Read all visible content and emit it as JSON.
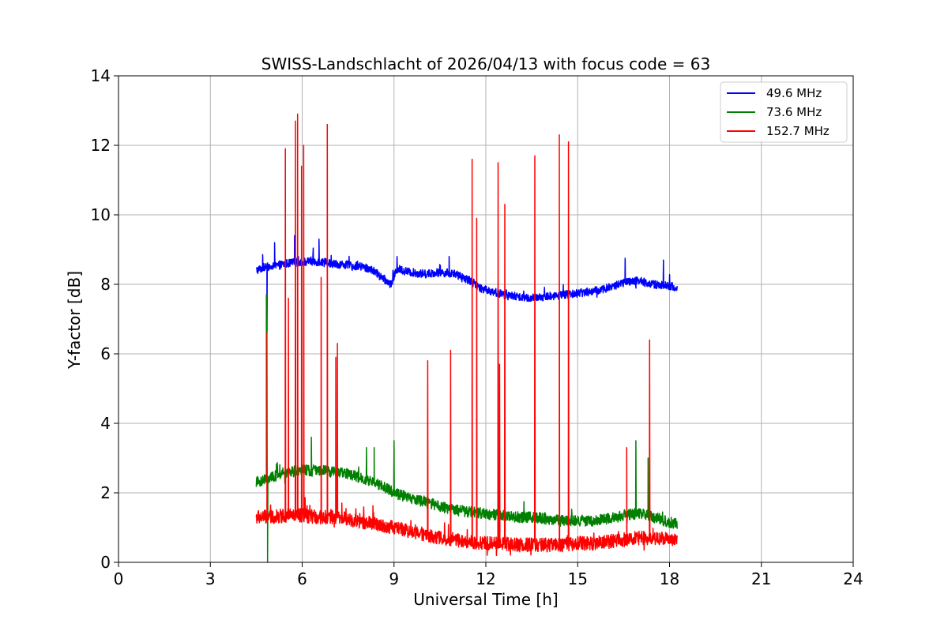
{
  "chart_data": {
    "type": "line",
    "title": "SWISS-Landschlacht of 2026/04/13 with focus code = 63",
    "xlabel": "Universal Time [h]",
    "ylabel": "Y-factor [dB]",
    "xlim": [
      0,
      24
    ],
    "ylim": [
      0,
      14
    ],
    "xticks": [
      0,
      3,
      6,
      9,
      12,
      15,
      18,
      21,
      24
    ],
    "yticks": [
      0,
      2,
      4,
      6,
      8,
      10,
      12,
      14
    ],
    "grid": true,
    "legend_position": "top-right",
    "series": [
      {
        "name": "49.6 MHz",
        "color": "#0000ff",
        "x": [
          4.5,
          4.8,
          5.0,
          5.5,
          6.0,
          6.5,
          7.0,
          7.5,
          8.0,
          8.3,
          8.6,
          8.9,
          9.1,
          9.5,
          10.0,
          10.5,
          11.0,
          11.5,
          11.8,
          12.2,
          12.6,
          13.0,
          13.5,
          14.0,
          14.5,
          15.0,
          15.5,
          16.0,
          16.5,
          17.0,
          17.5,
          18.0,
          18.25
        ],
        "values": [
          8.4,
          8.5,
          8.5,
          8.6,
          8.65,
          8.65,
          8.6,
          8.55,
          8.5,
          8.4,
          8.2,
          8.0,
          8.45,
          8.35,
          8.3,
          8.35,
          8.3,
          8.1,
          7.9,
          7.8,
          7.7,
          7.65,
          7.6,
          7.65,
          7.7,
          7.75,
          7.8,
          7.9,
          8.05,
          8.1,
          8.0,
          7.95,
          7.9
        ],
        "spikes": [
          [
            4.85,
            6.6
          ],
          [
            5.1,
            9.2
          ],
          [
            5.75,
            9.4
          ],
          [
            6.55,
            9.3
          ],
          [
            9.1,
            8.8
          ],
          [
            10.8,
            8.8
          ],
          [
            16.55,
            8.75
          ],
          [
            17.8,
            8.7
          ]
        ]
      },
      {
        "name": "73.6 MHz",
        "color": "#008000",
        "x": [
          4.5,
          5.0,
          5.5,
          6.0,
          6.5,
          7.0,
          7.5,
          8.0,
          8.5,
          9.0,
          9.5,
          10.0,
          10.5,
          11.0,
          11.5,
          12.0,
          12.5,
          13.0,
          13.5,
          14.0,
          14.5,
          15.0,
          15.5,
          16.0,
          16.5,
          17.0,
          17.5,
          18.0,
          18.25
        ],
        "values": [
          2.3,
          2.45,
          2.6,
          2.65,
          2.65,
          2.6,
          2.55,
          2.4,
          2.25,
          2.0,
          1.85,
          1.75,
          1.6,
          1.5,
          1.45,
          1.4,
          1.35,
          1.3,
          1.3,
          1.25,
          1.2,
          1.2,
          1.2,
          1.25,
          1.35,
          1.4,
          1.3,
          1.15,
          1.1
        ],
        "spikes": [
          [
            4.83,
            7.7
          ],
          [
            4.87,
            0.0
          ],
          [
            6.3,
            3.6
          ],
          [
            8.1,
            3.3
          ],
          [
            8.35,
            3.3
          ],
          [
            9.0,
            3.5
          ],
          [
            16.9,
            3.5
          ],
          [
            17.3,
            3.0
          ]
        ]
      },
      {
        "name": "152.7 MHz",
        "color": "#ff0000",
        "x": [
          4.5,
          5.0,
          5.5,
          6.0,
          6.5,
          7.0,
          7.5,
          8.0,
          8.5,
          9.0,
          9.5,
          10.0,
          10.5,
          11.0,
          11.5,
          12.0,
          12.5,
          13.0,
          13.5,
          14.0,
          14.5,
          15.0,
          15.5,
          16.0,
          16.5,
          17.0,
          17.5,
          18.0,
          18.25
        ],
        "values": [
          1.3,
          1.3,
          1.35,
          1.35,
          1.3,
          1.3,
          1.25,
          1.15,
          1.1,
          1.0,
          0.9,
          0.8,
          0.7,
          0.65,
          0.6,
          0.55,
          0.55,
          0.5,
          0.5,
          0.5,
          0.5,
          0.55,
          0.55,
          0.6,
          0.65,
          0.7,
          0.7,
          0.65,
          0.6
        ],
        "spikes": [
          [
            4.85,
            6.6
          ],
          [
            5.45,
            11.9
          ],
          [
            5.55,
            7.6
          ],
          [
            5.78,
            12.7
          ],
          [
            5.85,
            12.9
          ],
          [
            5.98,
            11.4
          ],
          [
            6.05,
            12.0
          ],
          [
            6.62,
            8.2
          ],
          [
            6.82,
            12.6
          ],
          [
            7.1,
            5.9
          ],
          [
            7.15,
            6.3
          ],
          [
            10.1,
            5.8
          ],
          [
            10.85,
            6.1
          ],
          [
            11.55,
            11.6
          ],
          [
            11.7,
            9.9
          ],
          [
            12.4,
            11.5
          ],
          [
            12.45,
            5.7
          ],
          [
            12.62,
            10.3
          ],
          [
            13.6,
            11.7
          ],
          [
            14.4,
            12.3
          ],
          [
            14.7,
            12.1
          ],
          [
            16.6,
            3.3
          ],
          [
            17.35,
            6.4
          ]
        ]
      }
    ]
  }
}
